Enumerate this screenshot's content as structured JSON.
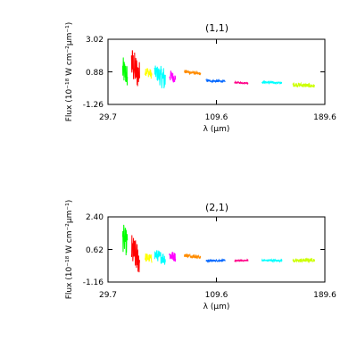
{
  "chart_data": [
    {
      "type": "line",
      "title": "(1,1)",
      "xlabel": "λ (μm)",
      "ylabel": "Flux (10⁻¹⁸ W cm⁻²μm⁻¹)",
      "xlim": [
        29.7,
        189.6
      ],
      "ylim": [
        -1.26,
        3.02
      ],
      "x_ticks": [
        "29.7",
        "109.6",
        "189.6"
      ],
      "y_ticks": [
        "3.02",
        "0.88",
        "-1.26"
      ],
      "grid": false,
      "series": [
        {
          "color": "#00ff00",
          "x": [
            40.5,
            44.0
          ],
          "y_center": [
            1.0,
            0.6
          ],
          "y_spread": [
            0.9,
            0.8
          ]
        },
        {
          "color": "#ff0000",
          "x": [
            47.0,
            53.0
          ],
          "y_center": [
            1.4,
            0.6
          ],
          "y_spread": [
            1.2,
            1.0
          ]
        },
        {
          "color": "#ffff00",
          "x": [
            57.0,
            62.0
          ],
          "y_center": [
            1.0,
            0.7
          ],
          "y_spread": [
            0.35,
            0.3
          ]
        },
        {
          "color": "#00ffff",
          "x": [
            64.0,
            72.0
          ],
          "y_center": [
            0.9,
            0.35
          ],
          "y_spread": [
            0.4,
            0.9
          ]
        },
        {
          "color": "#ff00ff",
          "x": [
            75.0,
            79.5
          ],
          "y_center": [
            0.65,
            0.45
          ],
          "y_spread": [
            0.4,
            0.3
          ]
        },
        {
          "color": "#ff8c00",
          "x": [
            86.0,
            98.0
          ],
          "y_center": [
            0.9,
            0.75
          ],
          "y_spread": [
            0.12,
            0.1
          ]
        },
        {
          "color": "#0066ff",
          "x": [
            102.0,
            116.0
          ],
          "y_center": [
            0.3,
            0.25
          ],
          "y_spread": [
            0.08,
            0.06
          ]
        },
        {
          "color": "#ff0088",
          "x": [
            123.0,
            133.0
          ],
          "y_center": [
            0.18,
            0.15
          ],
          "y_spread": [
            0.06,
            0.05
          ]
        },
        {
          "color": "#00ffff",
          "x": [
            143.0,
            158.0
          ],
          "y_center": [
            0.2,
            0.15
          ],
          "y_spread": [
            0.08,
            0.06
          ]
        },
        {
          "color": "#ccff00",
          "x": [
            166.0,
            182.0
          ],
          "y_center": [
            0.05,
            -0.05
          ],
          "y_spread": [
            0.15,
            0.12
          ]
        }
      ]
    },
    {
      "type": "line",
      "title": "(2,1)",
      "xlabel": "λ (μm)",
      "ylabel": "Flux (10⁻¹⁸ W cm⁻²μm⁻¹)",
      "xlim": [
        29.7,
        189.6
      ],
      "ylim": [
        -1.16,
        2.4
      ],
      "x_ticks": [
        "29.7",
        "109.6",
        "189.6"
      ],
      "y_ticks": [
        "2.40",
        "0.62",
        "-1.16"
      ],
      "grid": false,
      "series": [
        {
          "color": "#00ff00",
          "x": [
            40.5,
            44.0
          ],
          "y_center": [
            1.3,
            0.9
          ],
          "y_spread": [
            0.8,
            0.7
          ]
        },
        {
          "color": "#ff0000",
          "x": [
            47.0,
            53.0
          ],
          "y_center": [
            0.6,
            0.0
          ],
          "y_spread": [
            0.9,
            0.8
          ]
        },
        {
          "color": "#ffff00",
          "x": [
            57.0,
            62.0
          ],
          "y_center": [
            0.2,
            0.1
          ],
          "y_spread": [
            0.25,
            0.25
          ]
        },
        {
          "color": "#00ffff",
          "x": [
            64.0,
            72.0
          ],
          "y_center": [
            0.35,
            0.1
          ],
          "y_spread": [
            0.3,
            0.35
          ]
        },
        {
          "color": "#ff00ff",
          "x": [
            75.0,
            79.5
          ],
          "y_center": [
            0.3,
            0.2
          ],
          "y_spread": [
            0.3,
            0.25
          ]
        },
        {
          "color": "#ff8c00",
          "x": [
            86.0,
            98.0
          ],
          "y_center": [
            0.3,
            0.2
          ],
          "y_spread": [
            0.1,
            0.08
          ]
        },
        {
          "color": "#0066ff",
          "x": [
            102.0,
            116.0
          ],
          "y_center": [
            0.0,
            0.02
          ],
          "y_spread": [
            0.05,
            0.05
          ]
        },
        {
          "color": "#ff0088",
          "x": [
            123.0,
            133.0
          ],
          "y_center": [
            0.0,
            0.02
          ],
          "y_spread": [
            0.05,
            0.05
          ]
        },
        {
          "color": "#00ffff",
          "x": [
            143.0,
            158.0
          ],
          "y_center": [
            0.02,
            0.02
          ],
          "y_spread": [
            0.05,
            0.05
          ]
        },
        {
          "color": "#ccff00",
          "x": [
            166.0,
            182.0
          ],
          "y_center": [
            0.0,
            0.05
          ],
          "y_spread": [
            0.1,
            0.1
          ]
        }
      ]
    }
  ]
}
